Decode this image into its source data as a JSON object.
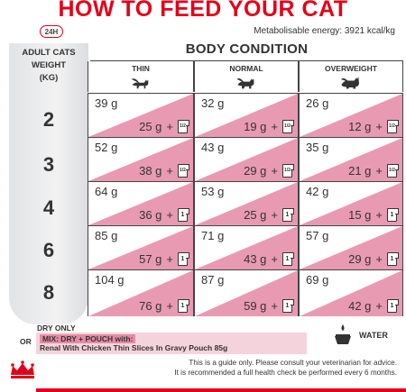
{
  "title": "HOW TO FEED YOUR CAT",
  "badge": "24H",
  "metabolisable": "Metabolisable energy: 3921 kcal/kg",
  "left_header": [
    "ADULT CATS",
    "WEIGHT",
    "(KG)"
  ],
  "body_condition": "BODY CONDITION",
  "columns": [
    "THIN",
    "NORMAL",
    "OVERWEIGHT"
  ],
  "rows": [
    {
      "weight": "2",
      "cells": [
        {
          "dry": "39 g",
          "mix": "25 g",
          "pouch": "1/2"
        },
        {
          "dry": "32 g",
          "mix": "19 g",
          "pouch": "1/2"
        },
        {
          "dry": "26 g",
          "mix": "12 g",
          "pouch": "1/2"
        }
      ]
    },
    {
      "weight": "3",
      "cells": [
        {
          "dry": "52 g",
          "mix": "38 g",
          "pouch": "1/2"
        },
        {
          "dry": "43 g",
          "mix": "29 g",
          "pouch": "1/2"
        },
        {
          "dry": "35 g",
          "mix": "21 g",
          "pouch": "1/2"
        }
      ]
    },
    {
      "weight": "4",
      "cells": [
        {
          "dry": "64 g",
          "mix": "36 g",
          "pouch": "1"
        },
        {
          "dry": "53 g",
          "mix": "25 g",
          "pouch": "1"
        },
        {
          "dry": "42 g",
          "mix": "15 g",
          "pouch": "1"
        }
      ]
    },
    {
      "weight": "6",
      "cells": [
        {
          "dry": "85 g",
          "mix": "57 g",
          "pouch": "1"
        },
        {
          "dry": "71 g",
          "mix": "43 g",
          "pouch": "1"
        },
        {
          "dry": "57 g",
          "mix": "29 g",
          "pouch": "1"
        }
      ]
    },
    {
      "weight": "8",
      "cells": [
        {
          "dry": "104 g",
          "mix": "76 g",
          "pouch": "1"
        },
        {
          "dry": "87 g",
          "mix": "59 g",
          "pouch": "1"
        },
        {
          "dry": "69 g",
          "mix": "42 g",
          "pouch": "1"
        }
      ]
    }
  ],
  "plus": "+",
  "legend": {
    "dry_only": "DRY ONLY",
    "or": "OR",
    "mix_label": "MIX: DRY + POUCH with:",
    "mix_product": "Renal With Chicken Thin Slices In Gravy Pouch 85g",
    "water": "WATER"
  },
  "footer": [
    "This is a guide only. Please consult your veterinarian for advice.",
    "It is recommended a full health check be performed every 6 months."
  ],
  "colors": {
    "brand_red": "#e2001a",
    "pink": "#e58ba6",
    "pink_light": "#f5d3dd"
  }
}
